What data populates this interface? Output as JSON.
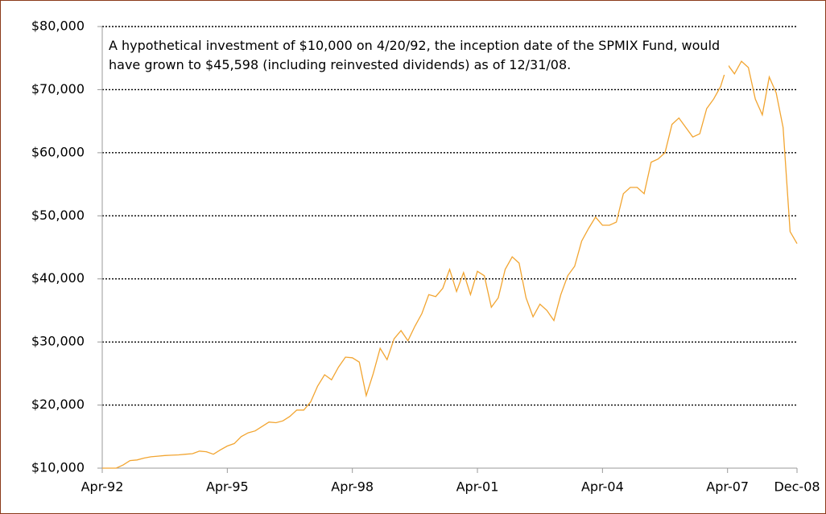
{
  "chart_data": {
    "type": "line",
    "annotation": "A hypothetical investment of $10,000 on 4/20/92, the inception date of the SPMIX Fund, would have grown to $45,598 (including reinvested dividends) as of 12/31/08.",
    "categories": [
      "Apr-92",
      null,
      null,
      null,
      null,
      null,
      null,
      null,
      null,
      null,
      null,
      null,
      null,
      null,
      null,
      null,
      null,
      null,
      "Apr-95",
      null,
      null,
      null,
      null,
      null,
      null,
      null,
      null,
      null,
      null,
      null,
      null,
      null,
      null,
      null,
      null,
      null,
      "Apr-98",
      null,
      null,
      null,
      null,
      null,
      null,
      null,
      null,
      null,
      null,
      null,
      null,
      null,
      null,
      null,
      null,
      null,
      "Apr-01",
      null,
      null,
      null,
      null,
      null,
      null,
      null,
      null,
      null,
      null,
      null,
      null,
      null,
      null,
      null,
      null,
      null,
      "Apr-04",
      null,
      null,
      null,
      null,
      null,
      null,
      null,
      null,
      null,
      null,
      null,
      null,
      null,
      null,
      null,
      null,
      null,
      "Apr-07",
      null,
      null,
      null,
      null,
      null,
      null,
      null,
      null,
      null,
      "Dec-08"
    ],
    "values": [
      10000,
      10000,
      10000,
      10500,
      11200,
      11300,
      11600,
      11800,
      11900,
      12000,
      12050,
      12100,
      12200,
      12300,
      12700,
      12600,
      12200,
      12900,
      13500,
      13900,
      15000,
      15600,
      15900,
      16600,
      17300,
      17200,
      17500,
      18200,
      19200,
      19200,
      20500,
      23000,
      24800,
      24000,
      26000,
      27600,
      27500,
      26800,
      21500,
      25000,
      29000,
      27200,
      30500,
      31800,
      30200,
      32500,
      34500,
      37500,
      37200,
      38500,
      41500,
      38000,
      41000,
      37500,
      41200,
      40500,
      35500,
      37000,
      41500,
      43500,
      42500,
      37000,
      34000,
      36000,
      35000,
      33400,
      37500,
      40500,
      42000,
      46000,
      48000,
      49800,
      48500,
      48500,
      49000,
      53500,
      54500,
      54500,
      53500,
      58500,
      59000,
      60000,
      64500,
      65500,
      64000,
      62500,
      63000,
      67000,
      68500,
      70500,
      74000,
      72500,
      74500,
      73500,
      68500,
      66000,
      72000,
      69500,
      64000,
      47500,
      45600
    ],
    "color": "#f2a531",
    "ylim": [
      10000,
      80000
    ],
    "yticks": [
      {
        "value": 10000,
        "label": "$10,000"
      },
      {
        "value": 20000,
        "label": "$20,000"
      },
      {
        "value": 30000,
        "label": "$30,000"
      },
      {
        "value": 40000,
        "label": "$40,000"
      },
      {
        "value": 50000,
        "label": "$50,000"
      },
      {
        "value": 60000,
        "label": "$60,000"
      },
      {
        "value": 70000,
        "label": "$70,000"
      },
      {
        "value": 80000,
        "label": "$80,000"
      }
    ],
    "grid": true
  }
}
